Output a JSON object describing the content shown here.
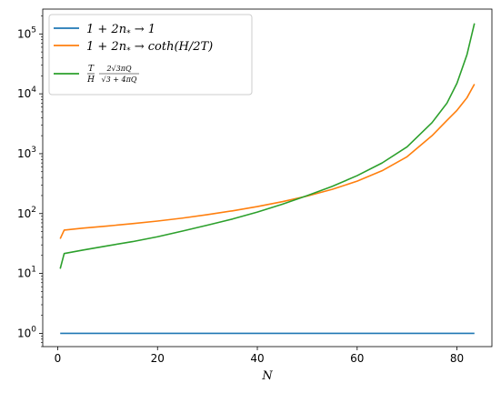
{
  "chart_data": {
    "type": "line",
    "xlabel": "N",
    "ylabel": "",
    "xlim": [
      -3,
      87
    ],
    "ylim": [
      0.6,
      260000
    ],
    "yscale": "log",
    "xticks": [
      "0",
      "20",
      "40",
      "60",
      "80"
    ],
    "xtick_values": [
      0,
      20,
      40,
      60,
      80
    ],
    "yticks": [
      {
        "base": "10",
        "exp": "0",
        "value": 1
      },
      {
        "base": "10",
        "exp": "1",
        "value": 10
      },
      {
        "base": "10",
        "exp": "2",
        "value": 100
      },
      {
        "base": "10",
        "exp": "3",
        "value": 1000
      },
      {
        "base": "10",
        "exp": "4",
        "value": 10000
      },
      {
        "base": "10",
        "exp": "5",
        "value": 100000
      }
    ],
    "grid": false,
    "legend_position": "upper-left",
    "series": [
      {
        "name": "1 + 2n* → 1",
        "color": "#1f77b4",
        "x": [
          0.5,
          83.5
        ],
        "y": [
          1,
          1
        ]
      },
      {
        "name": "1 + 2n* → coth(H/2T)",
        "color": "#ff7f0e",
        "x": [
          0.5,
          1.3,
          5,
          10,
          15,
          20,
          25,
          30,
          35,
          40,
          45,
          50,
          55,
          60,
          65,
          70,
          75,
          78,
          80,
          82,
          83.5
        ],
        "y": [
          38,
          53,
          57,
          62,
          68,
          75,
          84,
          96,
          111,
          131,
          158,
          196,
          254,
          348,
          520,
          890,
          2000,
          3600,
          5300,
          8600,
          14500
        ]
      },
      {
        "name": "T/H · 2√3πQ/√(3+4πQ)",
        "color": "#2ca02c",
        "x": [
          0.5,
          1.3,
          5,
          10,
          15,
          20,
          25,
          30,
          35,
          40,
          45,
          50,
          55,
          60,
          65,
          70,
          75,
          78,
          80,
          82,
          83.5
        ],
        "y": [
          12,
          21.5,
          24.5,
          29,
          34,
          41,
          51,
          64,
          81,
          106,
          143,
          200,
          285,
          430,
          700,
          1300,
          3300,
          7000,
          15000,
          45000,
          150000
        ]
      }
    ],
    "legend": [
      {
        "line1": "1 + 2n",
        "sub": "*",
        "line2": " → 1"
      },
      {
        "line1": "1 + 2n",
        "sub": "*",
        "line2": " → coth(H/2T)"
      },
      {
        "frac1_num": "T",
        "frac1_den": "H",
        "frac2_num": "2√3πQ",
        "frac2_den": "√3 + 4πQ"
      }
    ]
  }
}
